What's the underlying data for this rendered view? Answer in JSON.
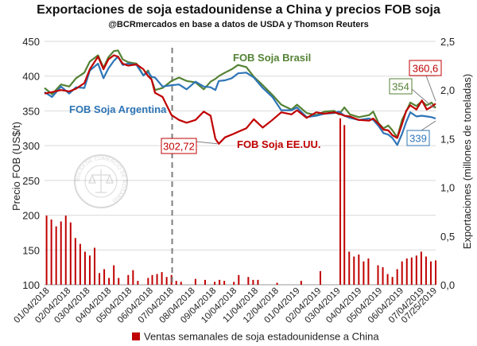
{
  "chart_data": {
    "type": "line",
    "title": "Exportaciones de soja estadounidense a China y precios FOB soja",
    "subtitle": "@BCRmercados en base a datos de USDA y Thomson Reuters",
    "ylabel_left": "Precio FOB (US$/t)",
    "ylabel_right": "Exportaciones (millones de toneladas)",
    "ylim_left": [
      100,
      450
    ],
    "yticks_left": [
      "100",
      "150",
      "200",
      "250",
      "300",
      "350",
      "400",
      "450"
    ],
    "ylim_right": [
      0,
      2.5
    ],
    "yticks_right": [
      "0,0",
      "0,5",
      "1,0",
      "1,5",
      "2,0",
      "2,5"
    ],
    "x_start": "2018-01-01",
    "x_end": "2019-07-25",
    "xticks": [
      "01/04/2018",
      "02/04/2018",
      "03/04/2018",
      "04/04/2018",
      "05/04/2018",
      "06/04/2018",
      "07/04/2018",
      "08/04/2018",
      "09/04/2018",
      "10/04/2018",
      "11/04/2018",
      "12/04/2018",
      "01/04/2019",
      "02/04/2019",
      "03/04/2019",
      "04/04/2019",
      "05/04/2019",
      "06/04/2019",
      "07/04/2019",
      "07/25/2019"
    ],
    "divider_date": "2018-07-06",
    "legend": "Ventas semanales de soja estadounidense a China",
    "series": [
      {
        "name": "FOB Soja Brasil",
        "axis": "left",
        "color": "#548235",
        "points": [
          [
            "2018-01-01",
            383
          ],
          [
            "2018-01-12",
            374
          ],
          [
            "2018-01-25",
            388
          ],
          [
            "2018-02-06",
            385
          ],
          [
            "2018-02-16",
            397
          ],
          [
            "2018-02-28",
            405
          ],
          [
            "2018-03-08",
            421
          ],
          [
            "2018-03-20",
            430
          ],
          [
            "2018-03-28",
            412
          ],
          [
            "2018-04-04",
            427
          ],
          [
            "2018-04-12",
            436
          ],
          [
            "2018-04-18",
            437
          ],
          [
            "2018-04-25",
            424
          ],
          [
            "2018-05-03",
            420
          ],
          [
            "2018-05-15",
            418
          ],
          [
            "2018-05-25",
            401
          ],
          [
            "2018-06-01",
            408
          ],
          [
            "2018-06-06",
            395
          ],
          [
            "2018-06-11",
            380
          ],
          [
            "2018-06-22",
            383
          ],
          [
            "2018-07-05",
            393
          ],
          [
            "2018-07-16",
            398
          ],
          [
            "2018-07-27",
            393
          ],
          [
            "2018-08-09",
            391
          ],
          [
            "2018-08-21",
            381
          ],
          [
            "2018-08-31",
            392
          ],
          [
            "2018-09-07",
            396
          ],
          [
            "2018-09-12",
            400
          ],
          [
            "2018-09-21",
            405
          ],
          [
            "2018-10-01",
            410
          ],
          [
            "2018-10-10",
            416
          ],
          [
            "2018-10-22",
            413
          ],
          [
            "2018-11-02",
            399
          ],
          [
            "2018-11-15",
            387
          ],
          [
            "2018-11-29",
            373
          ],
          [
            "2018-12-12",
            359
          ],
          [
            "2018-12-27",
            352
          ],
          [
            "2019-01-04",
            359
          ],
          [
            "2019-01-18",
            347
          ],
          [
            "2019-02-01",
            344
          ],
          [
            "2019-02-13",
            349
          ],
          [
            "2019-02-27",
            350
          ],
          [
            "2019-03-06",
            345
          ],
          [
            "2019-03-14",
            355
          ],
          [
            "2019-03-22",
            345
          ],
          [
            "2019-04-04",
            341
          ],
          [
            "2019-04-19",
            344
          ],
          [
            "2019-04-25",
            349
          ],
          [
            "2019-05-03",
            332
          ],
          [
            "2019-05-10",
            325
          ],
          [
            "2019-05-17",
            329
          ],
          [
            "2019-05-23",
            322
          ],
          [
            "2019-05-30",
            312
          ],
          [
            "2019-06-06",
            337
          ],
          [
            "2019-06-12",
            349
          ],
          [
            "2019-06-18",
            362
          ],
          [
            "2019-06-27",
            357
          ],
          [
            "2019-07-05",
            364
          ],
          [
            "2019-07-12",
            358
          ],
          [
            "2019-07-19",
            362
          ],
          [
            "2019-07-25",
            354
          ]
        ]
      },
      {
        "name": "FOB Soja Argentina",
        "axis": "left",
        "color": "#2E75B6",
        "points": [
          [
            "2018-01-01",
            377
          ],
          [
            "2018-01-12",
            370
          ],
          [
            "2018-01-25",
            385
          ],
          [
            "2018-02-06",
            375
          ],
          [
            "2018-02-16",
            384
          ],
          [
            "2018-02-28",
            383
          ],
          [
            "2018-03-08",
            408
          ],
          [
            "2018-03-20",
            418
          ],
          [
            "2018-03-28",
            397
          ],
          [
            "2018-04-04",
            411
          ],
          [
            "2018-04-12",
            422
          ],
          [
            "2018-04-18",
            428
          ],
          [
            "2018-04-25",
            416
          ],
          [
            "2018-05-03",
            418
          ],
          [
            "2018-05-15",
            416
          ],
          [
            "2018-05-25",
            401
          ],
          [
            "2018-06-01",
            406
          ],
          [
            "2018-06-06",
            399
          ],
          [
            "2018-06-11",
            398
          ],
          [
            "2018-06-22",
            385
          ],
          [
            "2018-07-05",
            387
          ],
          [
            "2018-07-16",
            388
          ],
          [
            "2018-07-27",
            381
          ],
          [
            "2018-08-09",
            392
          ],
          [
            "2018-08-21",
            385
          ],
          [
            "2018-08-31",
            384
          ],
          [
            "2018-09-07",
            380
          ],
          [
            "2018-09-12",
            393
          ],
          [
            "2018-09-21",
            394
          ],
          [
            "2018-10-01",
            397
          ],
          [
            "2018-10-10",
            404
          ],
          [
            "2018-10-22",
            405
          ],
          [
            "2018-11-02",
            398
          ],
          [
            "2018-11-15",
            383
          ],
          [
            "2018-11-29",
            370
          ],
          [
            "2018-12-12",
            351
          ],
          [
            "2018-12-27",
            351
          ],
          [
            "2019-01-04",
            355
          ],
          [
            "2019-01-18",
            341
          ],
          [
            "2019-02-01",
            343
          ],
          [
            "2019-02-13",
            346
          ],
          [
            "2019-02-27",
            347
          ],
          [
            "2019-03-06",
            349
          ],
          [
            "2019-03-14",
            343
          ],
          [
            "2019-03-22",
            340
          ],
          [
            "2019-04-04",
            337
          ],
          [
            "2019-04-19",
            339
          ],
          [
            "2019-04-25",
            337
          ],
          [
            "2019-05-03",
            328
          ],
          [
            "2019-05-10",
            318
          ],
          [
            "2019-05-17",
            316
          ],
          [
            "2019-05-23",
            311
          ],
          [
            "2019-05-30",
            301
          ],
          [
            "2019-06-06",
            317
          ],
          [
            "2019-06-12",
            334
          ],
          [
            "2019-06-18",
            348
          ],
          [
            "2019-06-27",
            342
          ],
          [
            "2019-07-05",
            343
          ],
          [
            "2019-07-12",
            342
          ],
          [
            "2019-07-19",
            341
          ],
          [
            "2019-07-25",
            339
          ]
        ]
      },
      {
        "name": "FOB Soja EE.UU.",
        "axis": "left",
        "color": "#C00000",
        "points": [
          [
            "2018-01-01",
            375
          ],
          [
            "2018-01-12",
            377
          ],
          [
            "2018-01-25",
            380
          ],
          [
            "2018-02-06",
            378
          ],
          [
            "2018-02-16",
            382
          ],
          [
            "2018-02-28",
            390
          ],
          [
            "2018-03-08",
            410
          ],
          [
            "2018-03-20",
            428
          ],
          [
            "2018-03-28",
            410
          ],
          [
            "2018-04-04",
            424
          ],
          [
            "2018-04-12",
            430
          ],
          [
            "2018-04-18",
            428
          ],
          [
            "2018-04-25",
            418
          ],
          [
            "2018-05-03",
            415
          ],
          [
            "2018-05-15",
            417
          ],
          [
            "2018-05-25",
            410
          ],
          [
            "2018-06-01",
            400
          ],
          [
            "2018-06-06",
            395
          ],
          [
            "2018-06-11",
            376
          ],
          [
            "2018-06-22",
            370
          ],
          [
            "2018-07-05",
            344
          ],
          [
            "2018-07-16",
            337
          ],
          [
            "2018-07-27",
            333
          ],
          [
            "2018-08-09",
            337
          ],
          [
            "2018-08-21",
            349
          ],
          [
            "2018-08-31",
            343
          ],
          [
            "2018-09-07",
            310
          ],
          [
            "2018-09-12",
            302.72
          ],
          [
            "2018-09-21",
            312
          ],
          [
            "2018-10-01",
            316
          ],
          [
            "2018-10-10",
            320
          ],
          [
            "2018-10-22",
            325
          ],
          [
            "2018-11-02",
            338
          ],
          [
            "2018-11-15",
            326
          ],
          [
            "2018-11-29",
            337
          ],
          [
            "2018-12-12",
            348
          ],
          [
            "2018-12-27",
            345
          ],
          [
            "2019-01-04",
            351
          ],
          [
            "2019-01-18",
            340
          ],
          [
            "2019-02-01",
            348
          ],
          [
            "2019-02-13",
            346
          ],
          [
            "2019-02-27",
            348
          ],
          [
            "2019-03-06",
            346
          ],
          [
            "2019-03-14",
            343
          ],
          [
            "2019-03-22",
            342
          ],
          [
            "2019-04-04",
            337
          ],
          [
            "2019-04-19",
            336
          ],
          [
            "2019-04-25",
            339
          ],
          [
            "2019-05-03",
            331
          ],
          [
            "2019-05-10",
            323
          ],
          [
            "2019-05-17",
            322
          ],
          [
            "2019-05-23",
            315
          ],
          [
            "2019-05-30",
            311
          ],
          [
            "2019-06-06",
            331
          ],
          [
            "2019-06-12",
            350
          ],
          [
            "2019-06-18",
            358
          ],
          [
            "2019-06-27",
            352
          ],
          [
            "2019-07-05",
            365
          ],
          [
            "2019-07-12",
            352
          ],
          [
            "2019-07-19",
            356
          ],
          [
            "2019-07-25",
            360.6
          ]
        ]
      }
    ],
    "bars": {
      "name": "Ventas semanales de soja estadounidense a China",
      "axis": "right",
      "color": "#C00000",
      "points": [
        [
          "2018-01-04",
          0.71
        ],
        [
          "2018-01-11",
          0.67
        ],
        [
          "2018-01-18",
          0.6
        ],
        [
          "2018-01-25",
          0.65
        ],
        [
          "2018-02-01",
          0.71
        ],
        [
          "2018-02-08",
          0.64
        ],
        [
          "2018-02-15",
          0.48
        ],
        [
          "2018-02-22",
          0.42
        ],
        [
          "2018-03-01",
          0.34
        ],
        [
          "2018-03-08",
          0.3
        ],
        [
          "2018-03-15",
          0.38
        ],
        [
          "2018-03-22",
          0.12
        ],
        [
          "2018-03-29",
          0.16
        ],
        [
          "2018-04-05",
          0.07
        ],
        [
          "2018-04-12",
          0.2
        ],
        [
          "2018-04-19",
          0.07
        ],
        [
          "2018-05-03",
          0.1
        ],
        [
          "2018-05-10",
          0.15
        ],
        [
          "2018-05-17",
          0.04
        ],
        [
          "2018-06-01",
          0.07
        ],
        [
          "2018-06-07",
          0.1
        ],
        [
          "2018-06-14",
          0.11
        ],
        [
          "2018-06-21",
          0.13
        ],
        [
          "2018-06-28",
          0.08
        ],
        [
          "2018-07-05",
          0.1
        ],
        [
          "2018-07-12",
          0.04
        ],
        [
          "2018-07-19",
          0.03
        ],
        [
          "2018-08-09",
          0.06
        ],
        [
          "2018-08-23",
          0.05
        ],
        [
          "2018-09-06",
          0.03
        ],
        [
          "2018-09-13",
          0.05
        ],
        [
          "2018-09-20",
          0.04
        ],
        [
          "2018-10-04",
          0.03
        ],
        [
          "2018-10-11",
          0.1
        ],
        [
          "2018-10-25",
          0.08
        ],
        [
          "2018-11-01",
          0.05
        ],
        [
          "2018-11-08",
          0.05
        ],
        [
          "2018-12-06",
          0.02
        ],
        [
          "2019-01-10",
          0.04
        ],
        [
          "2019-02-07",
          0.14
        ],
        [
          "2019-03-08",
          1.71
        ],
        [
          "2019-03-14",
          1.64
        ],
        [
          "2019-03-21",
          0.34
        ],
        [
          "2019-03-28",
          0.29
        ],
        [
          "2019-04-04",
          0.31
        ],
        [
          "2019-04-11",
          0.24
        ],
        [
          "2019-04-18",
          0.27
        ],
        [
          "2019-05-02",
          0.2
        ],
        [
          "2019-05-09",
          0.18
        ],
        [
          "2019-05-16",
          0.11
        ],
        [
          "2019-05-23",
          0.08
        ],
        [
          "2019-05-30",
          0.16
        ],
        [
          "2019-06-06",
          0.24
        ],
        [
          "2019-06-13",
          0.27
        ],
        [
          "2019-06-20",
          0.28
        ],
        [
          "2019-06-27",
          0.3
        ],
        [
          "2019-07-04",
          0.34
        ],
        [
          "2019-07-11",
          0.29
        ],
        [
          "2019-07-18",
          0.24
        ],
        [
          "2019-07-25",
          0.25
        ]
      ]
    },
    "annotations": [
      {
        "label": "302,72",
        "date": "2018-09-12",
        "value": 302.72,
        "color": "#C00000"
      },
      {
        "label": "360,6",
        "date": "2019-07-25",
        "value": 360.6,
        "color": "#C00000"
      },
      {
        "label": "354",
        "date": "2019-07-25",
        "value": 354,
        "color": "#548235"
      },
      {
        "label": "339",
        "date": "2019-07-25",
        "value": 339,
        "color": "#2E75B6"
      }
    ],
    "watermark": "BOLSA DE COMERCIO DE ROSARIO",
    "grid": true
  }
}
